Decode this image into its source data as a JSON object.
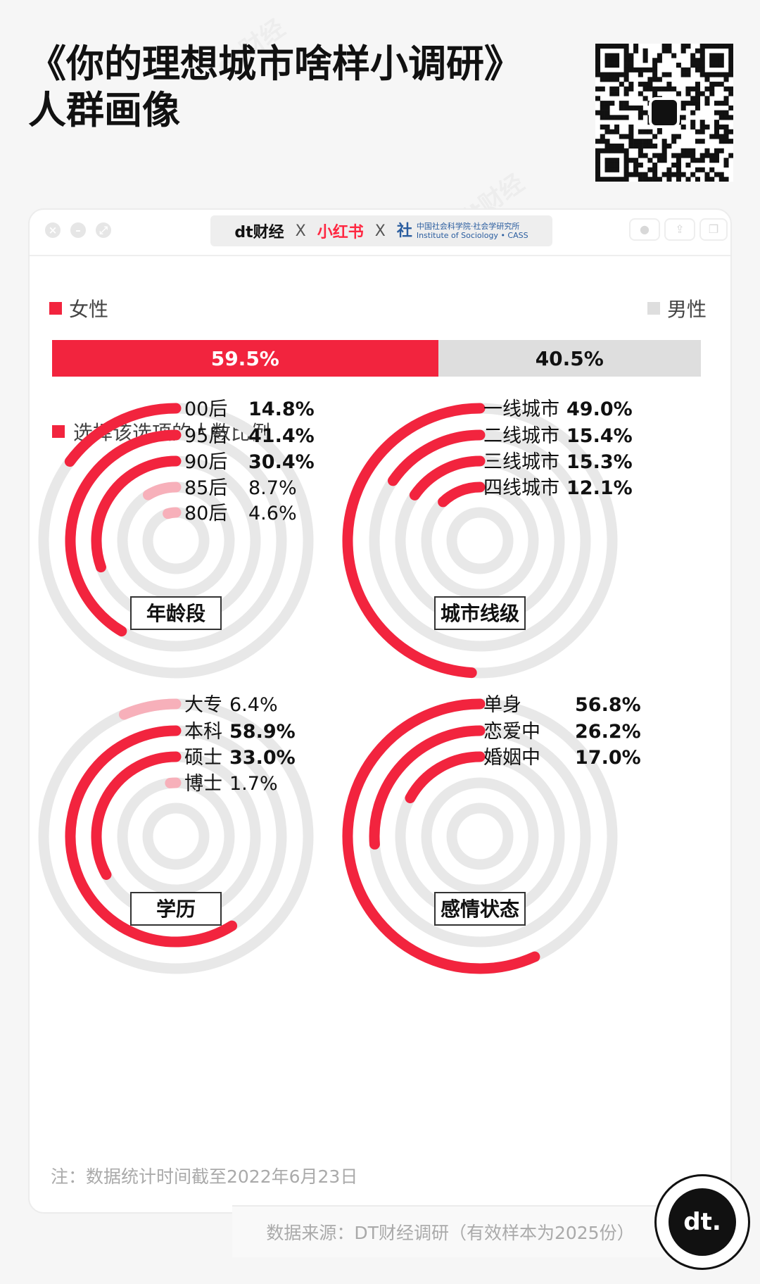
{
  "header": {
    "title_line1": "《你的理想城市啥样小调研》",
    "title_line2": "人群画像",
    "qr_icon": "qr-code-icon"
  },
  "window": {
    "brand_dt": "dt财经",
    "brand_sep1": "X",
    "brand_xhs": "小红书",
    "brand_sep2": "X",
    "brand_cass_line1": "中国社会科学院·社会学研究所",
    "brand_cass_line2": "Institute of Sociology • CASS"
  },
  "gender": {
    "female_label": "女性",
    "male_label": "男性",
    "female_value": "59.5%",
    "male_value": "40.5%",
    "female_share": 0.595,
    "female_color": "#f2243e",
    "male_color": "#dedede"
  },
  "legend": {
    "label": "选择该选项的人数比例"
  },
  "colors": {
    "strong": "#f2243e",
    "light": "#f7b0ba",
    "track": "#e8e8e8"
  },
  "chart_data": [
    {
      "type": "radial-bar",
      "title": "年龄段",
      "categories": [
        "00后",
        "95后",
        "90后",
        "85后",
        "80后"
      ],
      "values": [
        14.8,
        41.4,
        30.4,
        8.7,
        4.6
      ],
      "labels": [
        "14.8%",
        "41.4%",
        "30.4%",
        "8.7%",
        "4.6%"
      ]
    },
    {
      "type": "radial-bar",
      "title": "城市线级",
      "categories": [
        "一线城市",
        "二线城市",
        "三线城市",
        "四线城市"
      ],
      "values": [
        49.0,
        15.4,
        15.3,
        12.1
      ],
      "labels": [
        "49.0%",
        "15.4%",
        "15.3%",
        "12.1%"
      ]
    },
    {
      "type": "radial-bar",
      "title": "学历",
      "categories": [
        "大专",
        "本科",
        "硕士",
        "博士"
      ],
      "values": [
        6.4,
        58.9,
        33.0,
        1.7
      ],
      "labels": [
        "6.4%",
        "58.9%",
        "33.0%",
        "1.7%"
      ]
    },
    {
      "type": "radial-bar",
      "title": "感情状态",
      "categories": [
        "单身",
        "恋爱中",
        "婚姻中"
      ],
      "values": [
        56.8,
        26.2,
        17.0
      ],
      "labels": [
        "56.8%",
        "26.2%",
        "17.0%"
      ]
    }
  ],
  "footer": {
    "note": "注：数据统计时间截至2022年6月23日",
    "source": "数据来源：DT财经调研（有效样本为2025份）",
    "badge": "dt."
  },
  "watermark": "dt财经"
}
